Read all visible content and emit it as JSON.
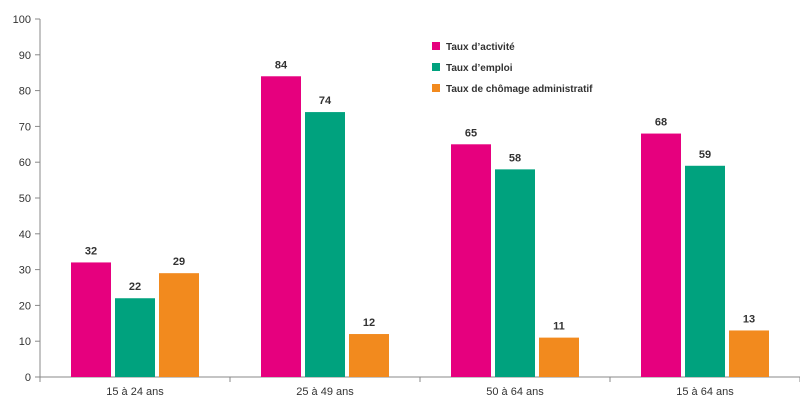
{
  "chart_data": {
    "type": "bar",
    "categories": [
      "15 à 24 ans",
      "25 à 49 ans",
      "50 à 64 ans",
      "15 à 64 ans"
    ],
    "series": [
      {
        "name": "Taux d’activité",
        "color": "#e6007e",
        "values": [
          32,
          84,
          65,
          68
        ]
      },
      {
        "name": "Taux d’emploi",
        "color": "#00a27e",
        "values": [
          22,
          74,
          58,
          59
        ]
      },
      {
        "name": "Taux de chômage administratif",
        "color": "#f28a1e",
        "values": [
          29,
          12,
          11,
          13
        ]
      }
    ],
    "ylim": [
      0,
      100
    ],
    "yticks": [
      0,
      10,
      20,
      30,
      40,
      50,
      60,
      70,
      80,
      90,
      100
    ],
    "grid": false,
    "legend_position": "top-center",
    "title": "",
    "xlabel": "",
    "ylabel": ""
  }
}
